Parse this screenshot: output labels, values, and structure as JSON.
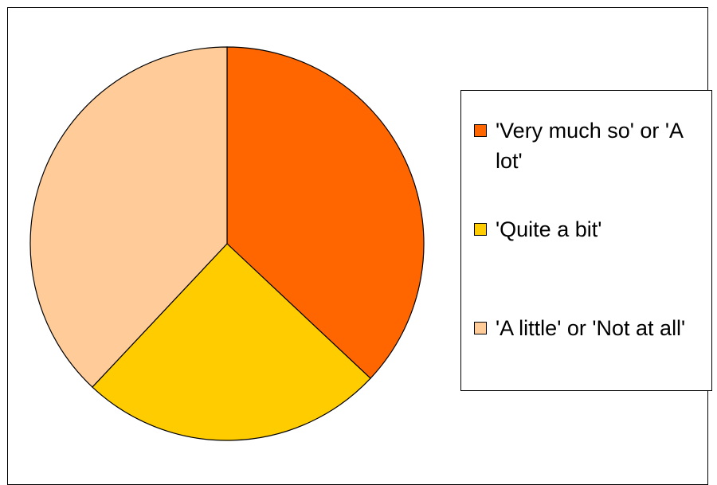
{
  "chart_data": {
    "type": "pie",
    "title": "",
    "legend_position": "right",
    "slices": [
      {
        "label": "'Very much so' or 'A lot'",
        "value": 37,
        "color": "#ff6600"
      },
      {
        "label": "'Quite a bit'",
        "value": 25,
        "color": "#ffcc00"
      },
      {
        "label": "'A little' or 'Not at all'",
        "value": 38,
        "color": "#ffcc99"
      }
    ]
  }
}
